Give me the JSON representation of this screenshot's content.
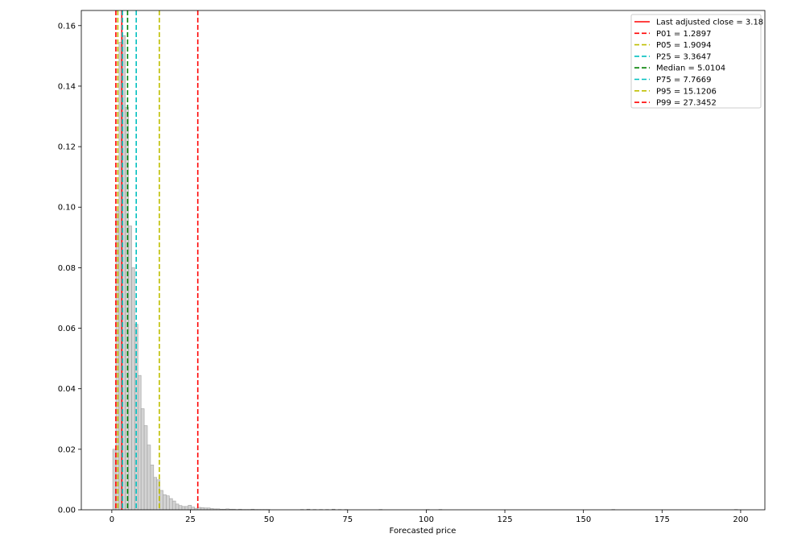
{
  "chart_data": {
    "type": "bar",
    "title": "",
    "xlabel": "Forecasted price",
    "ylabel": "",
    "xlim": [
      -9.7,
      207.7
    ],
    "ylim": [
      0,
      0.165
    ],
    "xticks": [
      0,
      25,
      50,
      75,
      100,
      125,
      150,
      175,
      200
    ],
    "yticks": [
      0.0,
      0.02,
      0.04,
      0.06,
      0.08,
      0.1,
      0.12,
      0.14,
      0.16
    ],
    "ytick_labels": [
      "0.00",
      "0.02",
      "0.04",
      "0.06",
      "0.08",
      "0.10",
      "0.12",
      "0.14",
      "0.16"
    ],
    "grid": false,
    "legend_position": "top-right",
    "histogram": {
      "bin_start": 0.3,
      "bin_width": 1.0,
      "values": [
        0.02,
        0.0986,
        0.1545,
        0.1567,
        0.133,
        0.0938,
        0.08,
        0.0613,
        0.0444,
        0.0334,
        0.0278,
        0.0214,
        0.0148,
        0.0107,
        0.0099,
        0.0064,
        0.005,
        0.0046,
        0.0037,
        0.0029,
        0.0019,
        0.0014,
        0.0011,
        0.0011,
        0.0015,
        0.0009,
        0.0005,
        0.0008,
        0.0007,
        0.0006,
        0.0006,
        0.0004,
        0.0003,
        0.0003,
        0.0002,
        0.0002,
        0.0003,
        0.0002,
        0.0002,
        0.0001,
        0.0002,
        0.0001,
        0.0001,
        0.0001,
        0.0002,
        0.0001,
        0.0001,
        0.0001,
        0.0001,
        0.0001
      ],
      "tail": [
        [
          60,
          0.0001
        ],
        [
          62,
          0.0002
        ],
        [
          64,
          0.0001
        ],
        [
          66,
          0.0001
        ],
        [
          68,
          0.0001
        ],
        [
          70,
          0.0002
        ],
        [
          72,
          0.0001
        ],
        [
          74,
          0.0001
        ],
        [
          85,
          0.0001
        ],
        [
          100,
          0.0001
        ],
        [
          104,
          0.0001
        ],
        [
          159,
          0.0001
        ],
        [
          198,
          0.0001
        ]
      ],
      "color": "#d3d3d3",
      "edge_color": "#a0a0a0"
    },
    "lines": [
      {
        "label": "Last adjusted close = 3.18",
        "x": 3.18,
        "color": "#ff0000",
        "style": "solid"
      },
      {
        "label": "P01 = 1.2897",
        "x": 1.2897,
        "color": "#ff0000",
        "style": "dashed"
      },
      {
        "label": "P05 = 1.9094",
        "x": 1.9094,
        "color": "#bfbf00",
        "style": "dashed"
      },
      {
        "label": "P25 = 3.3647",
        "x": 3.3647,
        "color": "#00bfbf",
        "style": "dashed"
      },
      {
        "label": "Median = 5.0104",
        "x": 5.0104,
        "color": "#008000",
        "style": "dashed"
      },
      {
        "label": "P75 = 7.7669",
        "x": 7.7669,
        "color": "#00bfbf",
        "style": "dashed"
      },
      {
        "label": "P95 = 15.1206",
        "x": 15.1206,
        "color": "#bfbf00",
        "style": "dashed"
      },
      {
        "label": "P99 = 27.3452",
        "x": 27.3452,
        "color": "#ff0000",
        "style": "dashed"
      }
    ]
  }
}
